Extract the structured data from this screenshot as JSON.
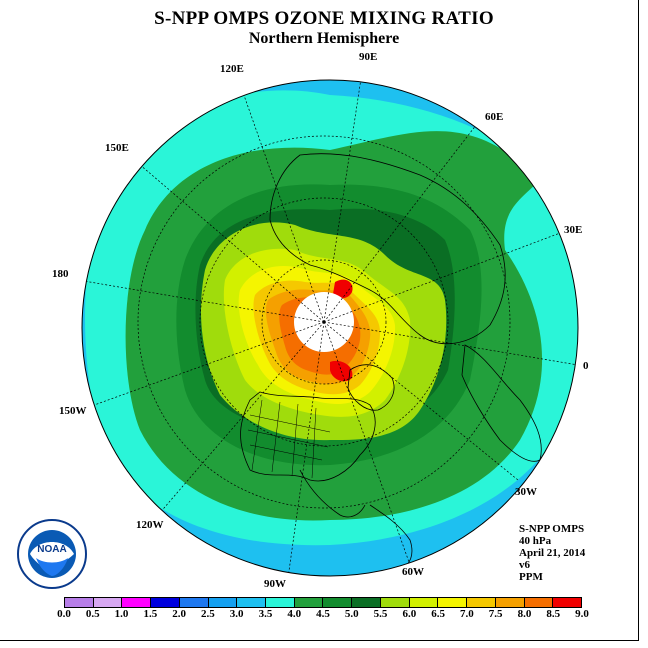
{
  "header": {
    "title": "S-NPP OMPS OZONE MIXING RATIO",
    "subtitle": "Northern Hemisphere"
  },
  "longitude_labels": [
    "90E",
    "60E",
    "30E",
    "0",
    "30W",
    "60W",
    "90W",
    "120W",
    "150W",
    "180",
    "150E",
    "120E"
  ],
  "info": {
    "instrument": "S-NPP OMPS",
    "pressure_level": "40 hPa",
    "date": "April 21, 2014",
    "version": "v6",
    "units": "PPM"
  },
  "logo": {
    "text": "NOAA",
    "ring_text": "NATIONAL OCEANIC AND ATMOSPHERIC ADMINISTRATION · U.S. DEPARTMENT OF COMMERCE"
  },
  "colorbar": {
    "ticks": [
      "0.0",
      "0.5",
      "1.0",
      "1.5",
      "2.0",
      "2.5",
      "3.0",
      "3.5",
      "4.0",
      "4.5",
      "5.0",
      "5.5",
      "6.0",
      "6.5",
      "7.0",
      "7.5",
      "8.0",
      "8.5",
      "9.0"
    ],
    "colors": [
      "#b77ee8",
      "#d7a8f2",
      "#ff00ff",
      "#0000dd",
      "#1e78f0",
      "#14a0f0",
      "#1ec0f0",
      "#2af5d8",
      "#22a03c",
      "#128c2e",
      "#0a6e24",
      "#a0dc0c",
      "#d2f000",
      "#f5f500",
      "#f5c800",
      "#f5a000",
      "#f56e00",
      "#f00000",
      "#8c5a3c"
    ]
  },
  "map_legend": {
    "pole_no_data": "white",
    "background_ocean_level": "3.5-4.0"
  }
}
